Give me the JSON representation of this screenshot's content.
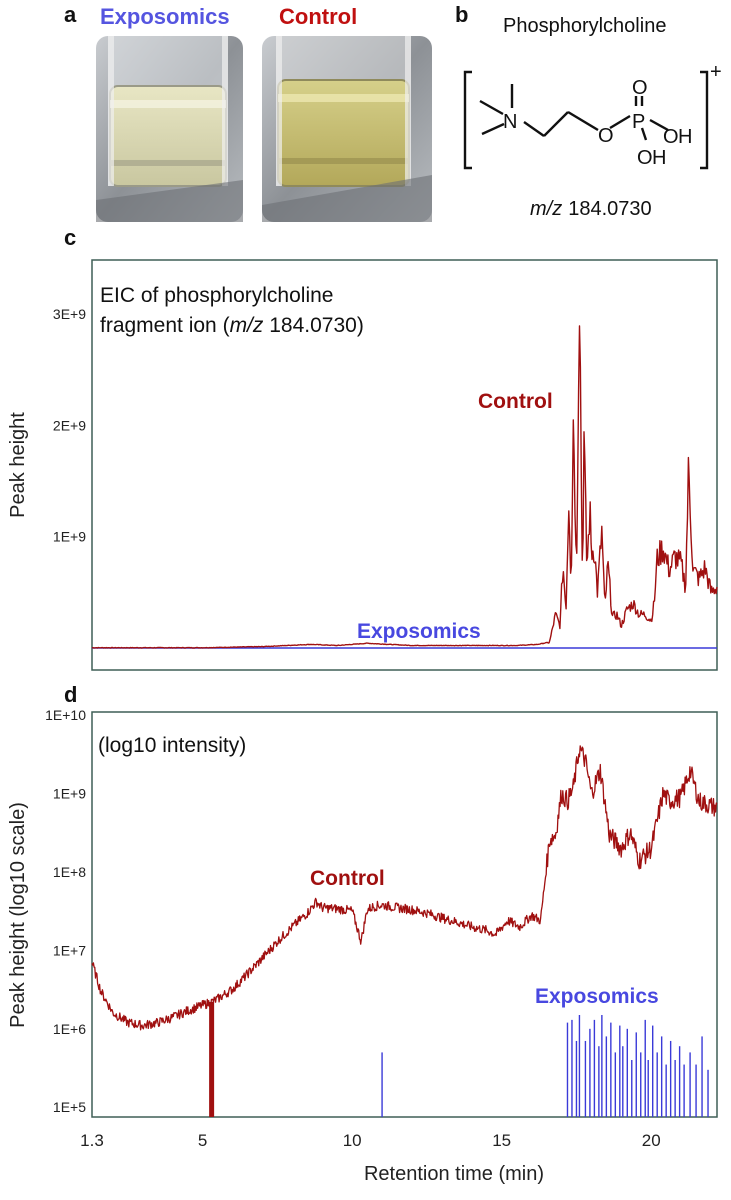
{
  "panels": {
    "a": "a",
    "b": "b",
    "c": "c",
    "d": "d"
  },
  "vial_labels": {
    "left": "Exposomics",
    "right": "Control"
  },
  "structure": {
    "title": "Phosphorylcholine",
    "charge": "+",
    "mz_italic": "m/z",
    "mz_value": "184.0730",
    "atoms": [
      "N",
      "O",
      "P",
      "O",
      "O",
      "H",
      "O",
      "H"
    ]
  },
  "colors": {
    "control": "#a01010",
    "exposomics": "#3a3ad8",
    "frame": "#3f5f56"
  },
  "chart_data": [
    {
      "type": "line",
      "panel": "c",
      "annotation_line1": "EIC of phosphorylcholine",
      "annotation_line2_pre": "fragment ion (",
      "annotation_line2_italic": "m/z",
      "annotation_line2_post": " 184.0730)",
      "ylabel": "Peak height",
      "xlim": [
        1.3,
        22.2
      ],
      "ylim": [
        0,
        3450000000.0
      ],
      "yticks": [
        {
          "value": 1000000000.0,
          "label": "1E+9"
        },
        {
          "value": 2000000000.0,
          "label": "2E+9"
        },
        {
          "value": 3000000000.0,
          "label": "3E+9"
        }
      ],
      "series": [
        {
          "name": "Control",
          "x": [
            1.3,
            3,
            5,
            7,
            8.6,
            9.5,
            10.5,
            12,
            14,
            15.5,
            16.2,
            16.6,
            16.8,
            16.95,
            17.05,
            17.15,
            17.25,
            17.32,
            17.4,
            17.5,
            17.6,
            17.7,
            17.75,
            17.85,
            17.95,
            18.0,
            18.1,
            18.2,
            18.35,
            18.45,
            18.55,
            18.7,
            18.85,
            19.0,
            19.2,
            19.4,
            19.6,
            19.8,
            20.0,
            20.1,
            20.2,
            20.4,
            20.6,
            20.8,
            21.0,
            21.15,
            21.25,
            21.4,
            21.6,
            21.8,
            22.0,
            22.2
          ],
          "y": [
            0,
            0,
            0,
            10000000.0,
            30000000.0,
            20000000.0,
            40000000.0,
            20000000.0,
            20000000.0,
            20000000.0,
            30000000.0,
            50000000.0,
            300000000.0,
            200000000.0,
            750000000.0,
            350000000.0,
            1400000000.0,
            550000000.0,
            2200000000.0,
            600000000.0,
            3350000000.0,
            550000000.0,
            1900000000.0,
            700000000.0,
            1250000000.0,
            850000000.0,
            900000000.0,
            500000000.0,
            1050000000.0,
            350000000.0,
            750000000.0,
            280000000.0,
            300000000.0,
            200000000.0,
            350000000.0,
            400000000.0,
            300000000.0,
            300000000.0,
            250000000.0,
            400000000.0,
            800000000.0,
            900000000.0,
            700000000.0,
            820000000.0,
            750000000.0,
            550000000.0,
            1600000000.0,
            700000000.0,
            620000000.0,
            720000000.0,
            500000000.0,
            550000000.0
          ]
        },
        {
          "name": "Exposomics",
          "x": [
            1.3,
            22.2
          ],
          "y": [
            0,
            0
          ]
        }
      ]
    },
    {
      "type": "line",
      "panel": "d",
      "annotation": "(log10 intensity)",
      "ylabel": "Peak height (log10 scale)",
      "xlabel": "Retention time (min)",
      "yscale": "log",
      "xlim": [
        1.3,
        22.2
      ],
      "ylim": [
        75000.0,
        11000000000.0
      ],
      "xticks": [
        {
          "value": 1.3,
          "label": "1.3"
        },
        {
          "value": 5,
          "label": "5"
        },
        {
          "value": 10,
          "label": "10"
        },
        {
          "value": 15,
          "label": "15"
        },
        {
          "value": 20,
          "label": "20"
        }
      ],
      "yticks": [
        {
          "value": 100000.0,
          "label": "1E+5"
        },
        {
          "value": 1000000.0,
          "label": "1E+6"
        },
        {
          "value": 10000000.0,
          "label": "1E+7"
        },
        {
          "value": 100000000.0,
          "label": "1E+8"
        },
        {
          "value": 1000000000.0,
          "label": "1E+9"
        },
        {
          "value": 10000000000.0,
          "label": "1E+10"
        }
      ],
      "series": [
        {
          "name": "Control",
          "x": [
            1.3,
            1.6,
            2.0,
            2.5,
            3.0,
            3.5,
            4.0,
            4.5,
            5.0,
            5.3,
            5.5,
            6.0,
            6.5,
            7.0,
            7.5,
            8.0,
            8.5,
            8.8,
            9.0,
            9.5,
            10.0,
            10.3,
            10.5,
            10.7,
            11.0,
            11.5,
            12.0,
            12.5,
            13.0,
            13.5,
            14.0,
            14.5,
            14.8,
            15.2,
            15.6,
            16.0,
            16.3,
            16.6,
            16.8,
            17.0,
            17.2,
            17.4,
            17.6,
            17.8,
            18.0,
            18.3,
            18.6,
            19.0,
            19.3,
            19.6,
            20.0,
            20.4,
            20.6,
            21.0,
            21.3,
            21.6,
            22.2
          ],
          "y": [
            7000000.0,
            3000000.0,
            1600000.0,
            1200000.0,
            1100000.0,
            1200000.0,
            1400000.0,
            1700000.0,
            2000000.0,
            2200000.0,
            2400000.0,
            3200000.0,
            5000000.0,
            8000000.0,
            13000000.0,
            20000000.0,
            30000000.0,
            42000000.0,
            35000000.0,
            34000000.0,
            32000000.0,
            13000000.0,
            33000000.0,
            36000000.0,
            38000000.0,
            35000000.0,
            33000000.0,
            30000000.0,
            26000000.0,
            23000000.0,
            20000000.0,
            18000000.0,
            16000000.0,
            24000000.0,
            20000000.0,
            28000000.0,
            24000000.0,
            260000000.0,
            300000000.0,
            1000000000.0,
            800000000.0,
            1200000000.0,
            3800000000.0,
            2600000000.0,
            1000000000.0,
            2000000000.0,
            300000000.0,
            200000000.0,
            320000000.0,
            140000000.0,
            200000000.0,
            1000000000.0,
            800000000.0,
            900000000.0,
            2000000000.0,
            800000000.0,
            650000000.0
          ]
        },
        {
          "name": "Exposomics",
          "x": [
            11.0,
            17.2,
            17.35,
            17.5,
            17.6,
            17.8,
            17.95,
            18.1,
            18.25,
            18.35,
            18.5,
            18.65,
            18.8,
            18.95,
            19.05,
            19.2,
            19.35,
            19.5,
            19.65,
            19.8,
            19.9,
            20.05,
            20.2,
            20.35,
            20.5,
            20.65,
            20.8,
            20.95,
            21.1,
            21.3,
            21.5,
            21.7,
            21.9
          ],
          "y": [
            500000.0,
            1200000.0,
            1300000.0,
            700000.0,
            1500000.0,
            700000.0,
            1000000.0,
            1300000.0,
            600000.0,
            1500000.0,
            800000.0,
            1200000.0,
            500000.0,
            1100000.0,
            600000.0,
            1000000.0,
            400000.0,
            900000.0,
            500000.0,
            1300000.0,
            400000.0,
            1100000.0,
            500000.0,
            800000.0,
            350000.0,
            700000.0,
            400000.0,
            600000.0,
            350000.0,
            500000.0,
            350000.0,
            800000.0,
            300000.0
          ]
        }
      ],
      "baseline": 75000.0,
      "control_dip_x": 5.3
    }
  ]
}
